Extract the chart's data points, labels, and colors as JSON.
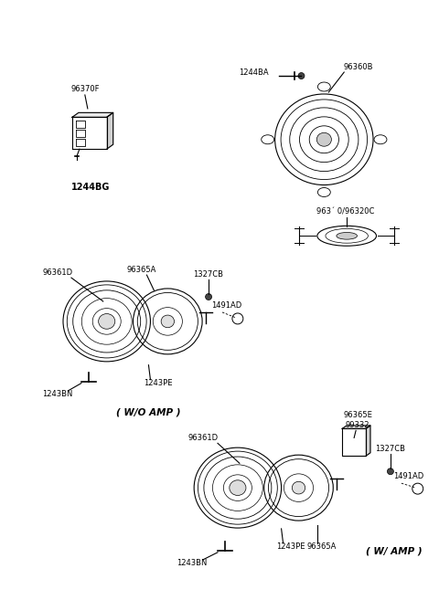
{
  "bg_color": "#ffffff",
  "lw": 0.8,
  "fs": 6.0,
  "labels": {
    "amp_unit": "96370F",
    "amp_base": "1244BG",
    "connector1": "1244BA",
    "big_speaker": "96360B",
    "tweeter_label": "963´ 0/96320C",
    "woofer_left_D": "96361D",
    "woofer_left_A": "96365A",
    "woofer_screw1": "1327CB",
    "woofer_bolt1": "1491AD",
    "woofer_bracket1": "1243PE",
    "woofer_clip1": "1243BN",
    "wo_amp": "( W/O AMP )",
    "woofer2_E": "96365E",
    "woofer2_332": "99332",
    "woofer2_D": "96361D",
    "woofer2_screw": "1327CB",
    "woofer2_bolt": "1491AD",
    "woofer2_bracket": "1243PE",
    "woofer2_clip": "1243BN",
    "woofer2_A": "96365A",
    "w_amp": "( W/ AMP )"
  },
  "figsize": [
    4.8,
    6.57
  ],
  "dpi": 100
}
